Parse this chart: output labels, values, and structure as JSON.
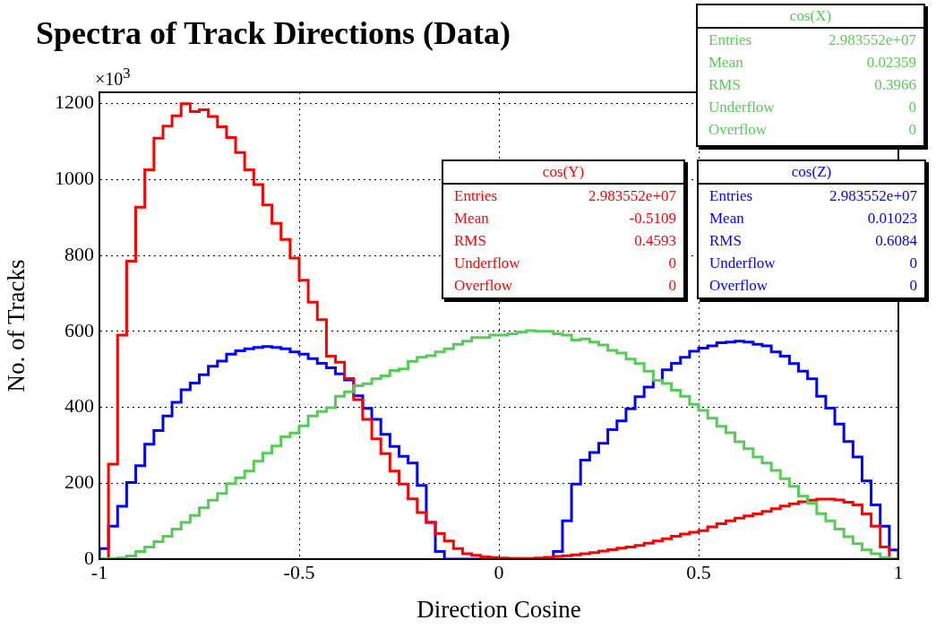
{
  "chart_data": {
    "type": "histogram",
    "title": "Spectra of Track Directions (Data)",
    "xlabel": "Direction Cosine",
    "ylabel": "No. of Tracks",
    "bins": [
      -1,
      -0.9773,
      -0.9545,
      -0.9318,
      -0.9091,
      -0.8864,
      -0.8636,
      -0.8409,
      -0.8182,
      -0.7955,
      -0.7727,
      -0.75,
      -0.7273,
      -0.7045,
      -0.6818,
      -0.6591,
      -0.6364,
      -0.6136,
      -0.5909,
      -0.5682,
      -0.5455,
      -0.5227,
      -0.5,
      -0.4773,
      -0.4545,
      -0.4318,
      -0.4091,
      -0.3864,
      -0.3636,
      -0.3409,
      -0.3182,
      -0.2955,
      -0.2727,
      -0.25,
      -0.2273,
      -0.2045,
      -0.1818,
      -0.1591,
      -0.1364,
      -0.1136,
      -0.0909,
      -0.0682,
      -0.0455,
      -0.0227,
      0,
      0.0227,
      0.0455,
      0.0682,
      0.0909,
      0.1136,
      0.1364,
      0.1591,
      0.1818,
      0.2045,
      0.2273,
      0.25,
      0.2727,
      0.2955,
      0.3182,
      0.3409,
      0.3636,
      0.3864,
      0.4091,
      0.4318,
      0.4545,
      0.4773,
      0.5,
      0.5227,
      0.5455,
      0.5682,
      0.5909,
      0.6136,
      0.6364,
      0.6591,
      0.6818,
      0.7045,
      0.7273,
      0.75,
      0.7727,
      0.7955,
      0.8182,
      0.8409,
      0.8636,
      0.8864,
      0.9091,
      0.9318,
      0.9545,
      0.9773,
      1
    ],
    "series": [
      {
        "name": "cos(X)",
        "color": "#55cc55",
        "values": [
          1,
          1,
          3,
          8,
          20,
          32,
          46,
          60,
          79,
          97,
          115,
          135,
          155,
          173,
          199,
          214,
          232,
          258,
          279,
          298,
          322,
          332,
          351,
          377,
          389,
          399,
          429,
          441,
          457,
          462,
          475,
          483,
          497,
          501,
          521,
          532,
          536,
          546,
          554,
          566,
          574,
          584,
          584,
          590,
          590,
          594,
          598,
          602,
          600,
          600,
          594,
          590,
          577,
          580,
          572,
          564,
          550,
          543,
          527,
          515,
          495,
          471,
          463,
          445,
          429,
          408,
          392,
          371,
          350,
          333,
          309,
          291,
          269,
          253,
          234,
          212,
          192,
          166,
          147,
          120,
          101,
          79,
          59,
          41,
          24,
          14,
          4,
          2
        ]
      },
      {
        "name": "cos(Y)",
        "color": "#ff0000",
        "values": [
          0,
          250,
          590,
          785,
          927,
          1026,
          1109,
          1141,
          1168,
          1200,
          1179,
          1184,
          1166,
          1139,
          1111,
          1071,
          1026,
          987,
          933,
          885,
          842,
          793,
          735,
          677,
          631,
          535,
          519,
          476,
          420,
          368,
          317,
          278,
          232,
          198,
          159,
          123,
          97,
          67,
          48,
          28,
          14,
          10,
          6,
          4,
          3,
          2,
          2,
          2,
          3,
          5,
          7,
          9,
          11,
          14,
          17,
          21,
          25,
          29,
          32,
          36,
          42,
          48,
          54,
          60,
          66,
          71,
          75,
          85,
          93,
          101,
          108,
          114,
          119,
          126,
          133,
          140,
          146,
          151,
          155,
          158,
          158,
          156,
          150,
          143,
          119,
          87,
          32,
          0
        ]
      },
      {
        "name": "cos(Z)",
        "color": "#0000ff",
        "values": [
          28,
          87,
          139,
          202,
          246,
          303,
          339,
          377,
          413,
          446,
          464,
          486,
          508,
          522,
          540,
          549,
          554,
          558,
          560,
          558,
          554,
          546,
          540,
          528,
          516,
          504,
          488,
          472,
          430,
          397,
          368,
          329,
          297,
          271,
          253,
          194,
          97,
          20,
          0,
          0,
          0,
          0,
          0,
          0,
          0,
          0,
          0,
          0,
          0,
          0,
          20,
          101,
          198,
          261,
          281,
          305,
          341,
          364,
          396,
          428,
          453,
          471,
          499,
          516,
          532,
          548,
          556,
          562,
          570,
          572,
          574,
          572,
          566,
          562,
          546,
          535,
          515,
          495,
          475,
          429,
          398,
          356,
          310,
          269,
          206,
          143,
          87,
          24
        ]
      }
    ],
    "xlim": [
      -1,
      1
    ],
    "ylim": [
      0,
      1230
    ],
    "xticks": [
      -1,
      -0.5,
      0,
      0.5,
      1
    ],
    "yticks": [
      0,
      200,
      400,
      600,
      800,
      1000,
      1200
    ],
    "grid": true,
    "legend": "top right",
    "annotations": [
      "×10$^{3}$",
      "Entries",
      "2.983552e+07",
      "Mean",
      "0.02359",
      "RMS",
      "0.3966",
      "Underflow",
      "0",
      "Overflow",
      "0",
      "Entries",
      "2.983552e+07",
      "Mean",
      "-0.5109",
      "RMS",
      "0.4593",
      "Underflow",
      "0",
      "Overflow",
      "0",
      "Entries",
      "2.983552e+07",
      "Mean",
      "0.01023",
      "RMS",
      "0.6084",
      "Underflow",
      "0",
      "Overflow",
      "0"
    ]
  }
}
